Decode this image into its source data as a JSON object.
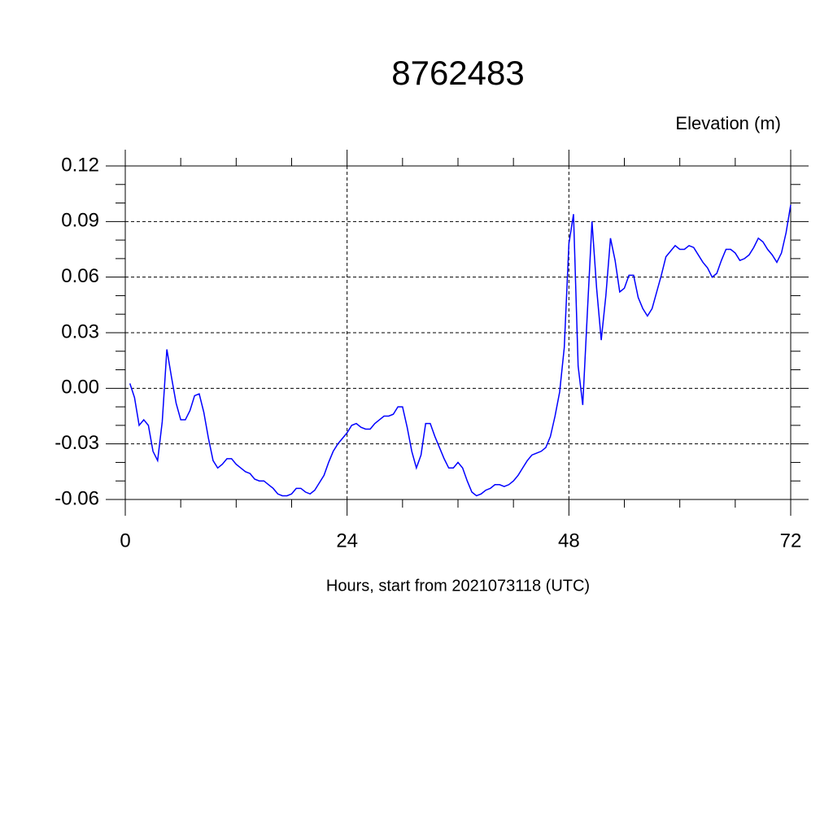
{
  "chart_data": {
    "type": "line",
    "title": "8762483",
    "ylabel": "Elevation (m)",
    "xlabel": "Hours, start from 2021073118 (UTC)",
    "x": [
      0.5,
      1,
      1.5,
      2,
      2.5,
      3,
      3.5,
      4,
      4.5,
      5,
      5.5,
      6,
      6.5,
      7,
      7.5,
      8,
      8.5,
      9,
      9.5,
      10,
      10.5,
      11,
      11.5,
      12,
      12.5,
      13,
      13.5,
      14,
      14.5,
      15,
      15.5,
      16,
      16.5,
      17,
      17.5,
      18,
      18.5,
      19,
      19.5,
      20,
      20.5,
      21,
      21.5,
      22,
      22.5,
      23,
      23.5,
      24,
      24.5,
      25,
      25.5,
      26,
      26.5,
      27,
      27.5,
      28,
      28.5,
      29,
      29.5,
      30,
      30.5,
      31,
      31.5,
      32,
      32.5,
      33,
      33.5,
      34,
      34.5,
      35,
      35.5,
      36,
      36.5,
      37,
      37.5,
      38,
      38.5,
      39,
      39.5,
      40,
      40.5,
      41,
      41.5,
      42,
      42.5,
      43,
      43.5,
      44,
      44.5,
      45,
      45.5,
      46,
      46.5,
      47,
      47.5,
      48,
      48.5,
      49,
      49.5,
      50,
      50.5,
      51,
      51.5,
      52,
      52.5,
      53,
      53.5,
      54,
      54.5,
      55,
      55.5,
      56,
      56.5,
      57,
      57.5,
      58,
      58.5,
      59,
      59.5,
      60,
      60.5,
      61,
      61.5,
      62,
      62.5,
      63,
      63.5,
      64,
      64.5,
      65,
      65.5,
      66,
      66.5,
      67,
      67.5,
      68,
      68.5,
      69,
      69.5,
      70,
      70.5,
      71,
      71.5,
      72
    ],
    "series": [
      {
        "color": "#0000ff",
        "values": [
          0.0026,
          -0.005,
          -0.02,
          -0.017,
          -0.02,
          -0.034,
          -0.039,
          -0.018,
          0.021,
          0.006,
          -0.008,
          -0.017,
          -0.017,
          -0.012,
          -0.004,
          -0.003,
          -0.013,
          -0.027,
          -0.039,
          -0.043,
          -0.041,
          -0.038,
          -0.038,
          -0.041,
          -0.043,
          -0.045,
          -0.046,
          -0.049,
          -0.05,
          -0.05,
          -0.052,
          -0.054,
          -0.057,
          -0.058,
          -0.058,
          -0.057,
          -0.054,
          -0.054,
          -0.056,
          -0.057,
          -0.055,
          -0.051,
          -0.047,
          -0.04,
          -0.034,
          -0.03,
          -0.027,
          -0.024,
          -0.02,
          -0.019,
          -0.021,
          -0.022,
          -0.022,
          -0.019,
          -0.017,
          -0.015,
          -0.015,
          -0.014,
          -0.01,
          -0.01,
          -0.021,
          -0.034,
          -0.043,
          -0.036,
          -0.019,
          -0.019,
          -0.026,
          -0.032,
          -0.038,
          -0.043,
          -0.043,
          -0.04,
          -0.043,
          -0.05,
          -0.056,
          -0.058,
          -0.057,
          -0.055,
          -0.054,
          -0.052,
          -0.052,
          -0.053,
          -0.052,
          -0.05,
          -0.047,
          -0.043,
          -0.039,
          -0.036,
          -0.035,
          -0.034,
          -0.032,
          -0.026,
          -0.015,
          -0.002,
          0.022,
          0.078,
          0.094,
          0.012,
          -0.009,
          0.041,
          0.09,
          0.054,
          0.026,
          0.05,
          0.081,
          0.069,
          0.052,
          0.054,
          0.061,
          0.061,
          0.049,
          0.043,
          0.039,
          0.043,
          0.052,
          0.061,
          0.071,
          0.074,
          0.077,
          0.075,
          0.075,
          0.077,
          0.076,
          0.072,
          0.068,
          0.065,
          0.06,
          0.062,
          0.069,
          0.075,
          0.075,
          0.073,
          0.069,
          0.07,
          0.072,
          0.076,
          0.081,
          0.079,
          0.075,
          0.072,
          0.068,
          0.073,
          0.084,
          0.099
        ]
      }
    ],
    "xlim": [
      0,
      72
    ],
    "xticks": [
      0,
      24,
      48,
      72
    ],
    "xminorticks": [
      6,
      12,
      18,
      30,
      36,
      42,
      54,
      60,
      66
    ],
    "ylim": [
      -0.06,
      0.12
    ],
    "yticks": [
      0.12,
      0.09,
      0.06,
      0.03,
      {
        "value": 0,
        "label": "0.00"
      },
      -0.03,
      -0.06
    ],
    "yminorticks": [
      0.11,
      0.1,
      0.08,
      0.07,
      0.05,
      0.04,
      0.02,
      0.01,
      -0.01,
      -0.02,
      -0.04,
      -0.05
    ],
    "grid": true
  }
}
